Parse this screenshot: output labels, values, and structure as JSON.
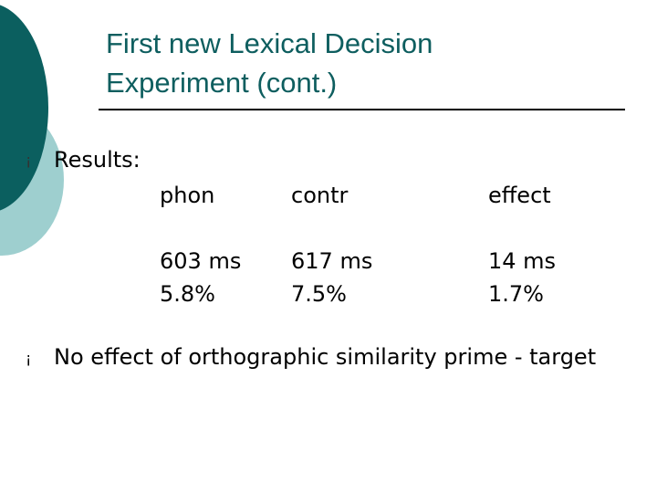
{
  "slide": {
    "title_lines": [
      "First new Lexical Decision",
      "Experiment (cont.)"
    ],
    "bullets": [
      {
        "marker": "¡",
        "text": "Results:"
      },
      {
        "marker": "¡",
        "text": "No effect of orthographic similarity prime - target"
      }
    ],
    "table": {
      "headers": [
        "phon",
        "contr",
        "effect"
      ],
      "rows": [
        [
          "603 ms",
          "617 ms",
          "14 ms"
        ],
        [
          "5.8%",
          "7.5%",
          "1.7%"
        ]
      ]
    }
  },
  "colors": {
    "title": "#0e5e5f",
    "accent_dark": "#0b5f5f",
    "accent_light": "#9ecfcf"
  }
}
